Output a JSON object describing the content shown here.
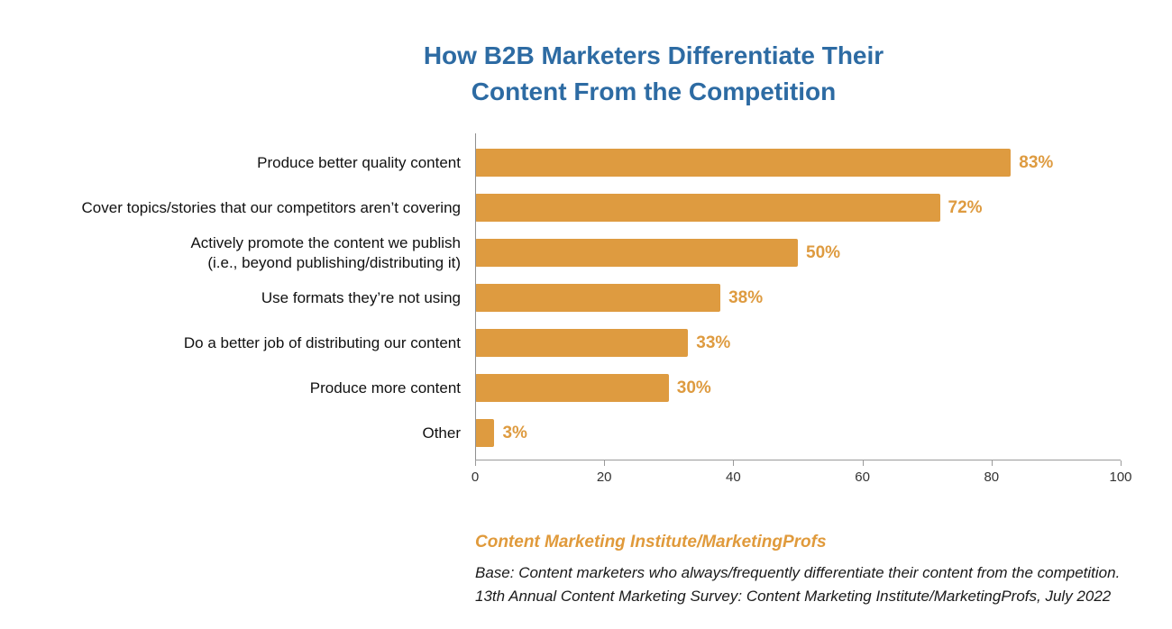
{
  "chart": {
    "title": "How B2B Marketers Differentiate Their\nContent From the Competition"
  },
  "colors": {
    "title_blue": "#2d6ba3",
    "bar_orange": "#de9b40",
    "value_label_orange": "#de9b40",
    "source_orange": "#e09a3b",
    "axis_gray": "#8f8f8f"
  },
  "chart_data": {
    "type": "bar",
    "orientation": "horizontal",
    "title": "How B2B Marketers Differentiate Their Content From the Competition",
    "categories": [
      "Produce better quality content",
      "Cover topics/stories that our competitors aren’t covering",
      "Actively promote the content we publish\n(i.e., beyond publishing/distributing it)",
      "Use formats they’re not using",
      "Do a better job of distributing our content",
      "Produce more content",
      "Other"
    ],
    "values": [
      83,
      72,
      50,
      38,
      33,
      30,
      3
    ],
    "value_labels": [
      "83%",
      "72%",
      "50%",
      "38%",
      "33%",
      "30%",
      "3%"
    ],
    "xlabel": "",
    "ylabel": "",
    "xlim": [
      0,
      100
    ],
    "x_ticks": [
      0,
      20,
      40,
      60,
      80,
      100
    ],
    "grid": false,
    "legend": false
  },
  "source": {
    "name": "Content Marketing Institute/MarketingProfs",
    "base": "Base: Content marketers who always/frequently differentiate their content from the competition.",
    "survey": "13th Annual Content Marketing Survey: Content Marketing Institute/MarketingProfs, July 2022"
  }
}
